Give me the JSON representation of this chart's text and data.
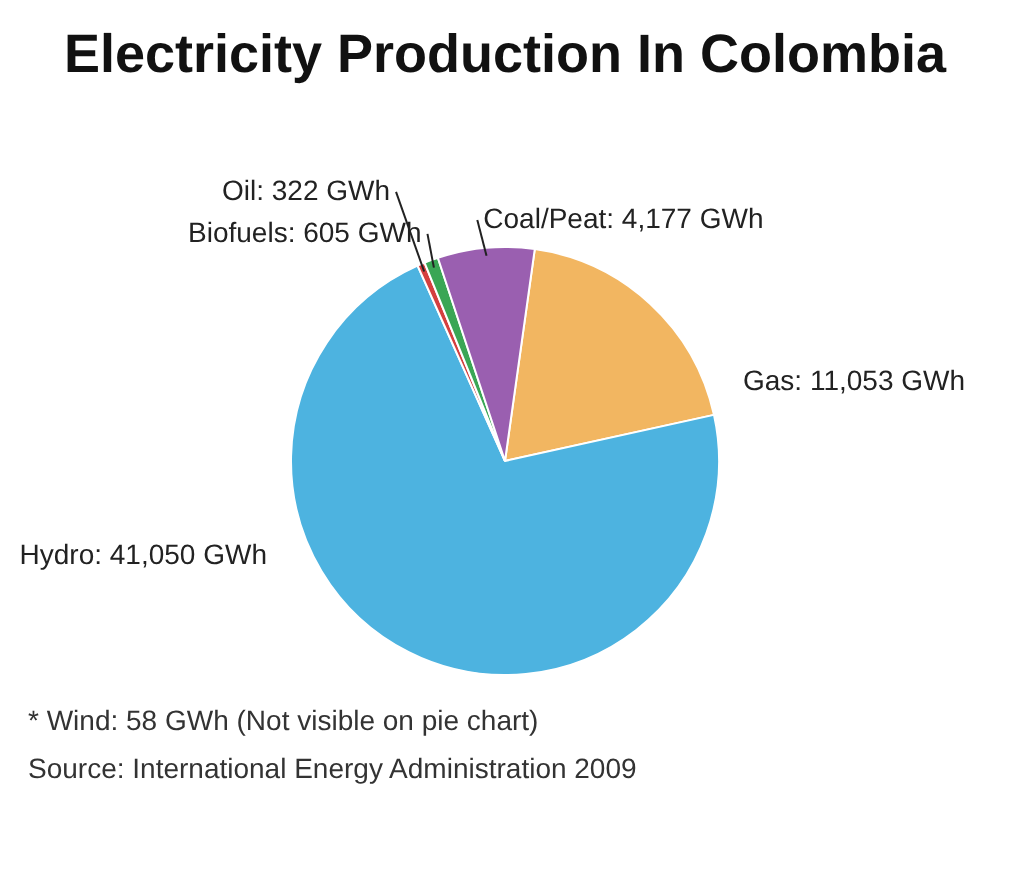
{
  "chart_data": {
    "type": "pie",
    "title": "Electricity Production In Colombia",
    "categories": [
      "Gas",
      "Hydro",
      "Oil",
      "Biofuels",
      "Coal/Peat"
    ],
    "values": [
      11053,
      41050,
      322,
      605,
      4177
    ],
    "value_labels": [
      "11,053 GWh",
      "41,050 GWh",
      "322 GWh",
      "605 GWh",
      "4,177 GWh"
    ],
    "colors": [
      "#f2b661",
      "#4db3e0",
      "#d43f3f",
      "#3aa655",
      "#9a5fb0"
    ],
    "legend": false,
    "annotations": [
      "* Wind: 58 GWh (Not visible on pie chart)",
      "Source: International Energy Administration 2009"
    ]
  }
}
